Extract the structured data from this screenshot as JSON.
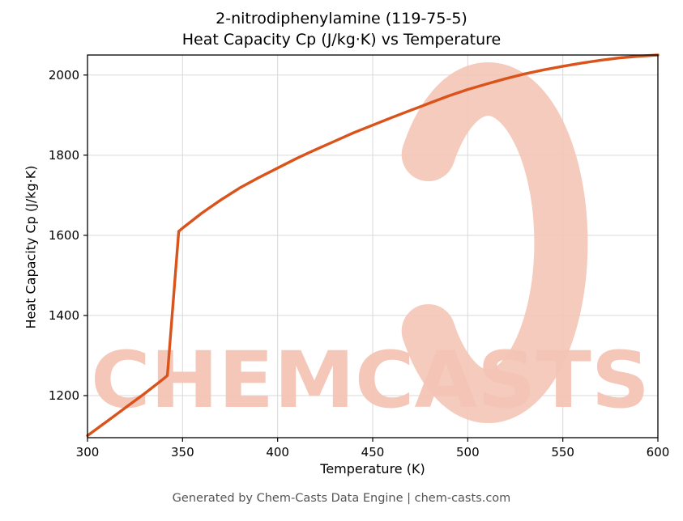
{
  "title_line1": "2-nitrodiphenylamine (119-75-5)",
  "title_line2": "Heat Capacity Cp (J/kg·K) vs Temperature",
  "footer": "Generated by Chem-Casts Data Engine | chem-casts.com",
  "watermark": {
    "text": "CHEMCASTS",
    "icon": "c-ring-icon",
    "color": "#f4c5b6"
  },
  "chart_data": {
    "type": "line",
    "title": "2-nitrodiphenylamine (119-75-5) Heat Capacity Cp (J/kg·K) vs Temperature",
    "xlabel": "Temperature (K)",
    "ylabel": "Heat Capacity Cp (J/kg·K)",
    "xlim": [
      300,
      600
    ],
    "ylim": [
      1095,
      2050
    ],
    "xticks": [
      300,
      350,
      400,
      450,
      500,
      550,
      600
    ],
    "yticks": [
      1200,
      1400,
      1600,
      1800,
      2000
    ],
    "grid": true,
    "grid_color": "#d9d9d9",
    "line_color": "#d9531b",
    "line_width": 3.4,
    "legend": "none",
    "series": [
      {
        "name": "Heat Capacity Cp",
        "x": [
          300,
          310,
          320,
          330,
          340,
          342,
          345,
          348,
          350,
          360,
          370,
          380,
          390,
          400,
          410,
          420,
          430,
          440,
          450,
          460,
          470,
          480,
          490,
          500,
          510,
          520,
          530,
          540,
          550,
          560,
          570,
          580,
          590,
          600
        ],
        "y": [
          1100,
          1135,
          1170,
          1205,
          1242,
          1250,
          1430,
          1610,
          1618,
          1655,
          1688,
          1718,
          1744,
          1768,
          1792,
          1814,
          1835,
          1856,
          1875,
          1894,
          1912,
          1930,
          1948,
          1964,
          1978,
          1991,
          2003,
          2013,
          2022,
          2030,
          2037,
          2043,
          2047,
          2050
        ]
      }
    ]
  }
}
